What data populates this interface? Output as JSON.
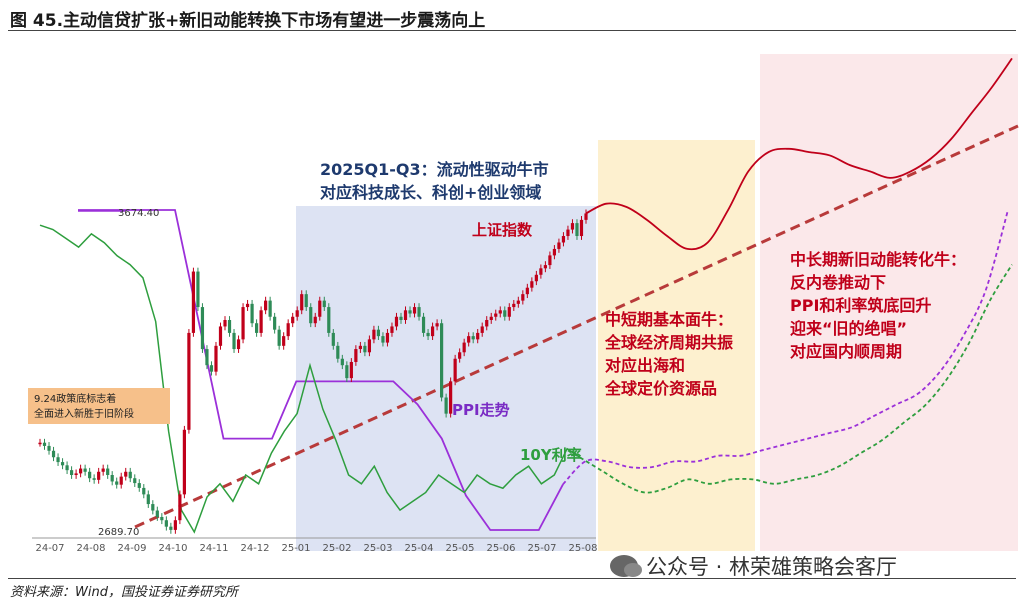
{
  "title": "图 45.主动信贷扩张+新旧动能转换下市场有望进一步震荡向上",
  "source": "资料来源：Wind，国投证券证券研究所",
  "watermark": "公众号 · 林荣雄策略会客厅",
  "colors": {
    "index": "#c0001a",
    "index_down": "#2e8b57",
    "ppi": "#9b30d9",
    "yield": "#2e9e3e",
    "trend": "#b83a3a",
    "zone_blue": "#dde3f3",
    "zone_yellow": "#fdf0cf",
    "zone_pink": "#fbe8ea",
    "note_bg": "#f6c08a"
  },
  "chart_data": {
    "type": "line",
    "x_ticks": [
      "24-07",
      "24-08",
      "24-09",
      "24-10",
      "24-11",
      "24-12",
      "25-01",
      "25-02",
      "25-03",
      "25-04",
      "25-05",
      "25-06",
      "25-07",
      "25-08"
    ],
    "labels": {
      "index_high": "3674.40",
      "index_low": "2689.70",
      "index_series": "上证指数",
      "ppi_series": "PPI走势",
      "yield_series": "10Y利率"
    },
    "note": [
      "9.24政策底标志着",
      "全面进入新胜于旧阶段"
    ],
    "zones": [
      {
        "name": "blue",
        "lines": [
          "2025Q1-Q3：流动性驱动牛市",
          "对应科技成长、科创+创业领域"
        ]
      },
      {
        "name": "yellow",
        "lines": [
          "中短期基本面牛：",
          "全球经济周期共振",
          "对应出海和",
          "全球定价资源品"
        ]
      },
      {
        "name": "pink",
        "lines": [
          "中长期新旧动能转化牛：",
          "反内卷推动下",
          "PPI和利率筑底回升",
          "迎来“旧的绝唱”",
          "对应国内顺周期"
        ]
      }
    ],
    "index_close": [
      2960,
      2950,
      2935,
      2915,
      2900,
      2890,
      2875,
      2860,
      2865,
      2880,
      2870,
      2850,
      2845,
      2870,
      2880,
      2860,
      2840,
      2830,
      2855,
      2870,
      2850,
      2835,
      2820,
      2800,
      2770,
      2750,
      2730,
      2720,
      2700,
      2690,
      2720,
      2800,
      3000,
      3300,
      3490,
      3380,
      3250,
      3200,
      3180,
      3260,
      3320,
      3340,
      3300,
      3250,
      3280,
      3380,
      3390,
      3330,
      3300,
      3370,
      3400,
      3350,
      3310,
      3260,
      3290,
      3330,
      3350,
      3370,
      3420,
      3380,
      3330,
      3350,
      3400,
      3380,
      3300,
      3260,
      3220,
      3200,
      3160,
      3210,
      3250,
      3260,
      3240,
      3280,
      3310,
      3290,
      3270,
      3300,
      3320,
      3350,
      3340,
      3370,
      3360,
      3380,
      3350,
      3300,
      3290,
      3320,
      3330,
      3100,
      3050,
      3150,
      3220,
      3240,
      3270,
      3290,
      3280,
      3300,
      3320,
      3340,
      3350,
      3360,
      3370,
      3350,
      3380,
      3390,
      3400,
      3420,
      3440,
      3460,
      3480,
      3500,
      3510,
      3540,
      3560,
      3580,
      3600,
      3620,
      3640,
      3600,
      3650,
      3670
    ],
    "index_projection": [
      3670,
      3700,
      3690,
      3650,
      3600,
      3560,
      3580,
      3680,
      3800,
      3860,
      3870,
      3860,
      3850,
      3820,
      3800,
      3780,
      3800,
      3840,
      3900,
      3980,
      4060,
      4150
    ],
    "ppi": [
      -0.8,
      -0.8,
      -0.8,
      -0.8,
      -0.8,
      -1.8,
      -2.8,
      -2.8,
      -2.8,
      -2.3,
      -2.3,
      -2.3,
      -2.3,
      -2.3,
      -2.5,
      -2.8,
      -3.3,
      -3.6,
      -3.6,
      -3.6,
      -3.2
    ],
    "ppi_projection": [
      -3.2,
      -3.0,
      -3.0,
      -3.05,
      -3.05,
      -3.0,
      -3.0,
      -2.95,
      -2.95,
      -2.9,
      -2.85,
      -2.8,
      -2.75,
      -2.7,
      -2.6,
      -2.5,
      -2.4,
      -2.2,
      -1.9,
      -1.5,
      -0.8
    ],
    "yield": [
      2.27,
      2.26,
      2.24,
      2.22,
      2.25,
      2.23,
      2.2,
      2.18,
      2.15,
      2.05,
      1.8,
      1.62,
      1.57,
      1.65,
      1.68,
      1.64,
      1.7,
      1.68,
      1.75,
      1.8,
      1.84,
      1.95,
      1.85,
      1.78,
      1.7,
      1.68,
      1.72,
      1.66,
      1.62,
      1.64,
      1.66,
      1.7,
      1.68,
      1.66,
      1.7,
      1.68,
      1.67,
      1.7,
      1.72,
      1.68,
      1.7,
      1.76,
      1.74
    ],
    "yield_projection": [
      1.74,
      1.71,
      1.68,
      1.66,
      1.67,
      1.69,
      1.68,
      1.69,
      1.69,
      1.68,
      1.69,
      1.7,
      1.72,
      1.75,
      1.78,
      1.82,
      1.86,
      1.92,
      2.0,
      2.1,
      2.18
    ]
  }
}
